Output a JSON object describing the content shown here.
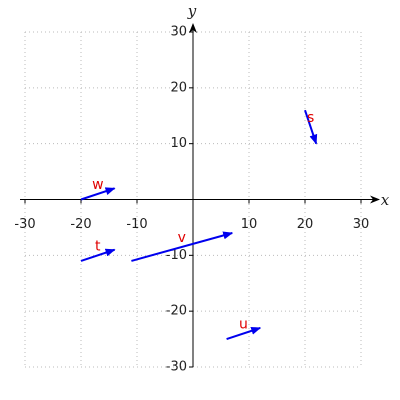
{
  "chart_data": {
    "type": "vector",
    "x_label": "x",
    "y_label": "y",
    "xlim": [
      -30,
      30
    ],
    "ylim": [
      -30,
      30
    ],
    "xticks": [
      -30,
      -20,
      -10,
      10,
      20,
      30
    ],
    "yticks": [
      -30,
      -20,
      -10,
      10,
      20,
      30
    ],
    "grid": true,
    "color": "#0000ee",
    "label_color": "#e00000",
    "vectors": [
      {
        "name": "s",
        "x": 20,
        "y": 16,
        "u": 2,
        "v": -6
      },
      {
        "name": "w",
        "x": -20,
        "y": 0,
        "u": 6,
        "v": 2
      },
      {
        "name": "t",
        "x": -20,
        "y": -11,
        "u": 6,
        "v": 2
      },
      {
        "name": "v",
        "x": -11,
        "y": -11,
        "u": 18,
        "v": 5
      },
      {
        "name": "u",
        "x": 6,
        "y": -25,
        "u": 6,
        "v": 2
      }
    ]
  }
}
